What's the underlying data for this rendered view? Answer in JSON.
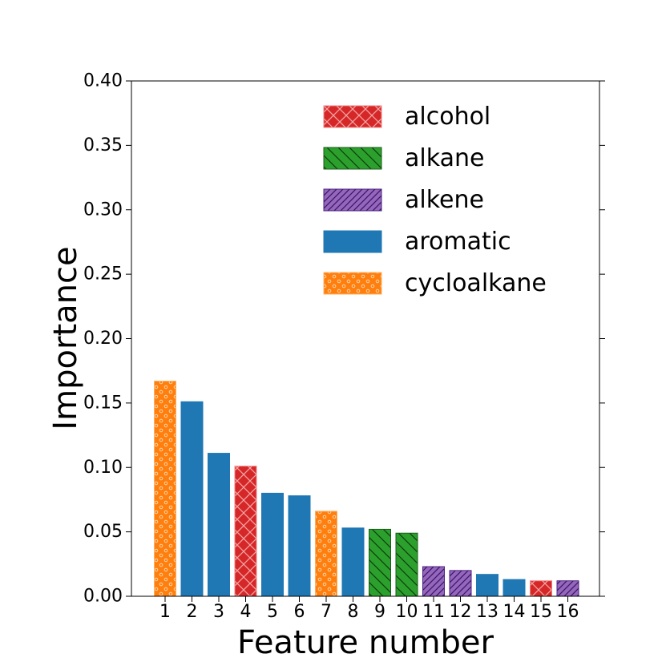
{
  "chart_data": {
    "type": "bar",
    "xlabel": "Feature number",
    "ylabel": "Importance",
    "ylim": [
      0,
      0.4
    ],
    "yticks": [
      0.0,
      0.05,
      0.1,
      0.15,
      0.2,
      0.25,
      0.3,
      0.35,
      0.4
    ],
    "ytick_labels": [
      "0.00",
      "0.05",
      "0.10",
      "0.15",
      "0.20",
      "0.25",
      "0.30",
      "0.35",
      "0.40"
    ],
    "categories": [
      "1",
      "2",
      "3",
      "4",
      "5",
      "6",
      "7",
      "8",
      "9",
      "10",
      "11",
      "12",
      "13",
      "14",
      "15",
      "16"
    ],
    "values": [
      0.167,
      0.151,
      0.111,
      0.101,
      0.08,
      0.078,
      0.066,
      0.053,
      0.052,
      0.049,
      0.023,
      0.02,
      0.017,
      0.013,
      0.012,
      0.012
    ],
    "groups": [
      "cycloalkane",
      "aromatic",
      "aromatic",
      "alcohol",
      "aromatic",
      "aromatic",
      "cycloalkane",
      "aromatic",
      "alkane",
      "alkane",
      "alkene",
      "alkene",
      "aromatic",
      "aromatic",
      "alcohol",
      "alkene"
    ],
    "legend": {
      "position": "upper-right",
      "entries": [
        {
          "name": "alcohol",
          "color": "#d62728",
          "hatch": "crosshatch"
        },
        {
          "name": "alkane",
          "color": "#2ca02c",
          "hatch": "backslash"
        },
        {
          "name": "alkene",
          "color": "#9467bd",
          "hatch": "slash"
        },
        {
          "name": "aromatic",
          "color": "#1f77b4",
          "hatch": "none"
        },
        {
          "name": "cycloalkane",
          "color": "#ff7f0e",
          "hatch": "circles"
        }
      ]
    },
    "grid": false
  }
}
